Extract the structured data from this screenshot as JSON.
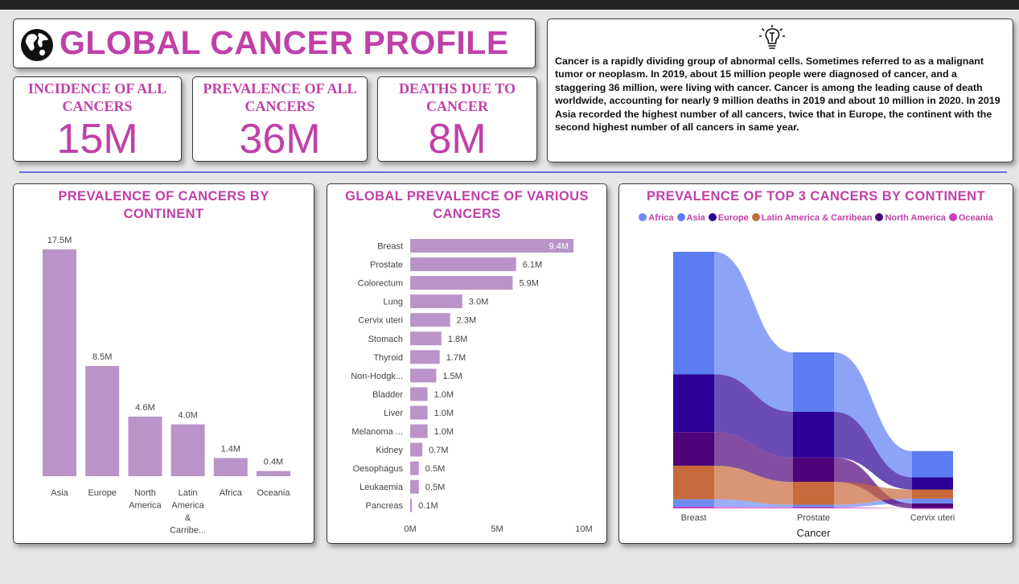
{
  "header": {
    "title": "GLOBAL CANCER PROFILE",
    "icon": "globe-icon"
  },
  "kpis": [
    {
      "label": "INCIDENCE OF ALL CANCERS",
      "value": "15M"
    },
    {
      "label": "PREVALENCE OF ALL CANCERS",
      "value": "36M"
    },
    {
      "label": "DEATHS DUE TO CANCER",
      "value": "8M"
    }
  ],
  "description": {
    "icon": "lightbulb-icon",
    "text": "Cancer is a rapidly dividing group of abnormal cells. Sometimes referred to as a malignant tumor or neoplasm. In 2019, about 15 million people were diagnosed of cancer, and a staggering 36 million, were living with cancer. Cancer is among the leading cause of death worldwide, accounting for nearly 9 million deaths in 2019 and about 10 million in 2020. In 2019 Asia recorded the highest number of all cancers, twice that in Europe, the continent with the second highest number of all cancers in same year."
  },
  "colors": {
    "accent": "#c041a8",
    "bar": "#ba94c9",
    "divider": "#6b6be6"
  },
  "chart_data": [
    {
      "type": "bar",
      "title": "PREVALENCE OF CANCERS BY CONTINENT",
      "categories": [
        "Asia",
        "Europe",
        "North America",
        "Latin America & Carribe...",
        "Africa",
        "Oceania"
      ],
      "values": [
        17.5,
        8.5,
        4.6,
        4.0,
        1.4,
        0.4
      ],
      "data_labels": [
        "17.5M",
        "8.5M",
        "4.6M",
        "4.0M",
        "1.4M",
        "0.4M"
      ],
      "unit": "M",
      "ylim": [
        0,
        17.5
      ],
      "grid": false
    },
    {
      "type": "bar",
      "orientation": "horizontal",
      "title": "GLOBAL PREVALENCE OF VARIOUS CANCERS",
      "categories": [
        "Breast",
        "Prostate",
        "Colorectum",
        "Lung",
        "Cervix uteri",
        "Stomach",
        "Thyroid",
        "Non-Hodgk...",
        "Bladder",
        "Liver",
        "Melanoma ...",
        "Kidney",
        "Oesophagus",
        "Leukaemia",
        "Pancreas"
      ],
      "values": [
        9.4,
        6.1,
        5.9,
        3.0,
        2.3,
        1.8,
        1.7,
        1.5,
        1.0,
        1.0,
        1.0,
        0.7,
        0.5,
        0.5,
        0.1
      ],
      "data_labels": [
        "9.4M",
        "6.1M",
        "5.9M",
        "3.0M",
        "2.3M",
        "1.8M",
        "1.7M",
        "1.5M",
        "1.0M",
        "1.0M",
        "1.0M",
        "0.7M",
        "0.5M",
        "0.5M",
        "0.1M"
      ],
      "xticks": [
        "0M",
        "5M",
        "10M"
      ],
      "xlim": [
        0,
        10
      ],
      "grid": false
    },
    {
      "type": "area",
      "subtype": "stacked ribbon",
      "title": "PREVALENCE OF TOP 3 CANCERS BY CONTINENT",
      "xlabel": "Cancer",
      "categories": [
        "Breast",
        "Prostate",
        "Cervix uteri"
      ],
      "legend_position": "top",
      "series": [
        {
          "name": "Asia",
          "color": "#5b7cf2",
          "values": [
            4.02,
            1.95,
            0.86
          ]
        },
        {
          "name": "Africa",
          "color": "#6f8cf5",
          "values": [
            0.25,
            0.08,
            0.16
          ]
        },
        {
          "name": "Europe",
          "color": "#2c0096",
          "values": [
            1.9,
            1.5,
            0.4
          ]
        },
        {
          "name": "North America",
          "color": "#4f037a",
          "values": [
            1.1,
            0.8,
            0.15
          ]
        },
        {
          "name": "Latin America & Carribean",
          "color": "#c86a3c",
          "values": [
            1.1,
            0.75,
            0.3
          ]
        },
        {
          "name": "Oceania",
          "color": "#c83cbc",
          "values": [
            0.05,
            0.04,
            0.01
          ]
        }
      ],
      "legend": [
        "Africa",
        "Asia",
        "Europe",
        "Latin America & Carribean",
        "North America",
        "Oceania"
      ]
    }
  ]
}
